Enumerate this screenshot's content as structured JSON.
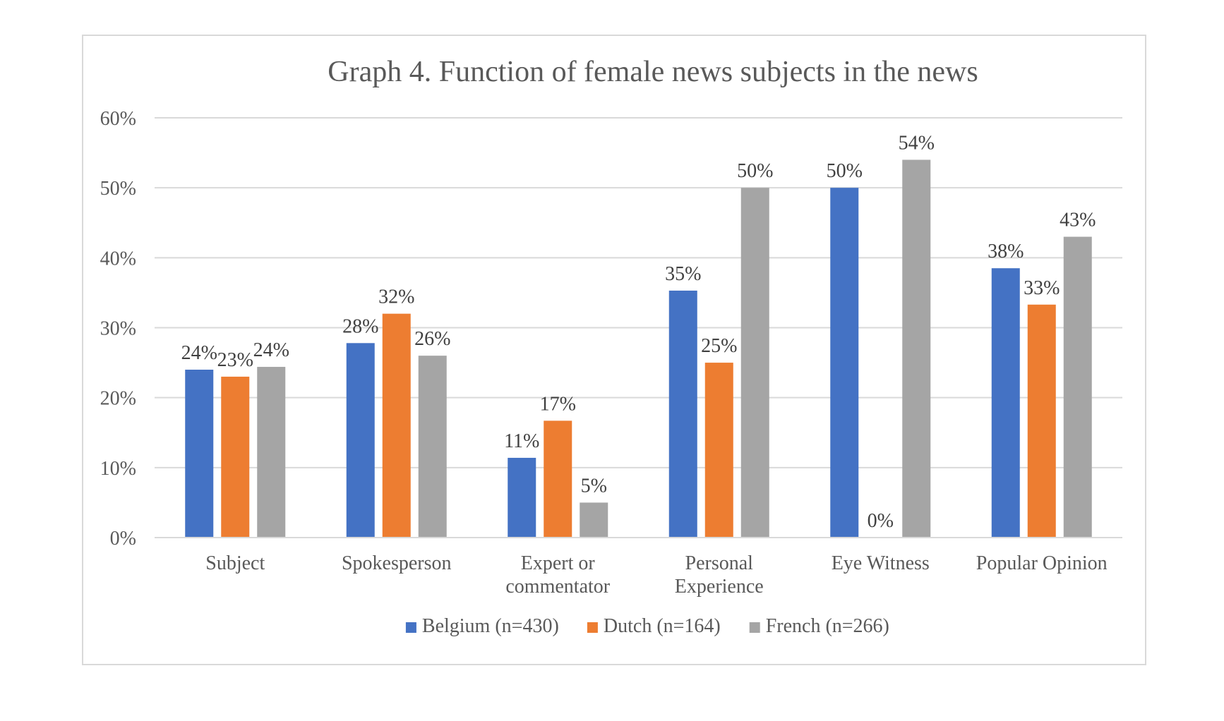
{
  "chart_data": {
    "type": "bar",
    "title": "Graph 4. Function of female news subjects in the news",
    "xlabel": "",
    "ylabel": "",
    "ylim": [
      0,
      0.6
    ],
    "y_ticks": [
      0,
      0.1,
      0.2,
      0.3,
      0.4,
      0.5,
      0.6
    ],
    "y_tick_labels": [
      "0%",
      "10%",
      "20%",
      "30%",
      "40%",
      "50%",
      "60%"
    ],
    "grid": true,
    "legend_position": "bottom",
    "categories": [
      "Subject",
      "Spokesperson",
      "Expert or commentator",
      "Personal Experience",
      "Eye Witness",
      "Popular Opinion"
    ],
    "category_lines": [
      [
        "Subject"
      ],
      [
        "Spokesperson"
      ],
      [
        "Expert or",
        "commentator"
      ],
      [
        "Personal",
        "Experience"
      ],
      [
        "Eye Witness"
      ],
      [
        "Popular Opinion"
      ]
    ],
    "series": [
      {
        "name": "Belgium (n=430)",
        "color": "#4472c4",
        "values": [
          0.24,
          0.278,
          0.114,
          0.353,
          0.5,
          0.385
        ],
        "labels": [
          "24%",
          "28%",
          "11%",
          "35%",
          "50%",
          "38%"
        ]
      },
      {
        "name": "Dutch (n=164)",
        "color": "#ed7d31",
        "values": [
          0.23,
          0.32,
          0.167,
          0.25,
          0.0,
          0.333
        ],
        "labels": [
          "23%",
          "32%",
          "17%",
          "25%",
          "0%",
          "33%"
        ]
      },
      {
        "name": "French (n=266)",
        "color": "#a5a5a5",
        "values": [
          0.244,
          0.26,
          0.05,
          0.5,
          0.54,
          0.43
        ],
        "labels": [
          "24%",
          "26%",
          "5%",
          "50%",
          "54%",
          "43%"
        ]
      }
    ]
  }
}
